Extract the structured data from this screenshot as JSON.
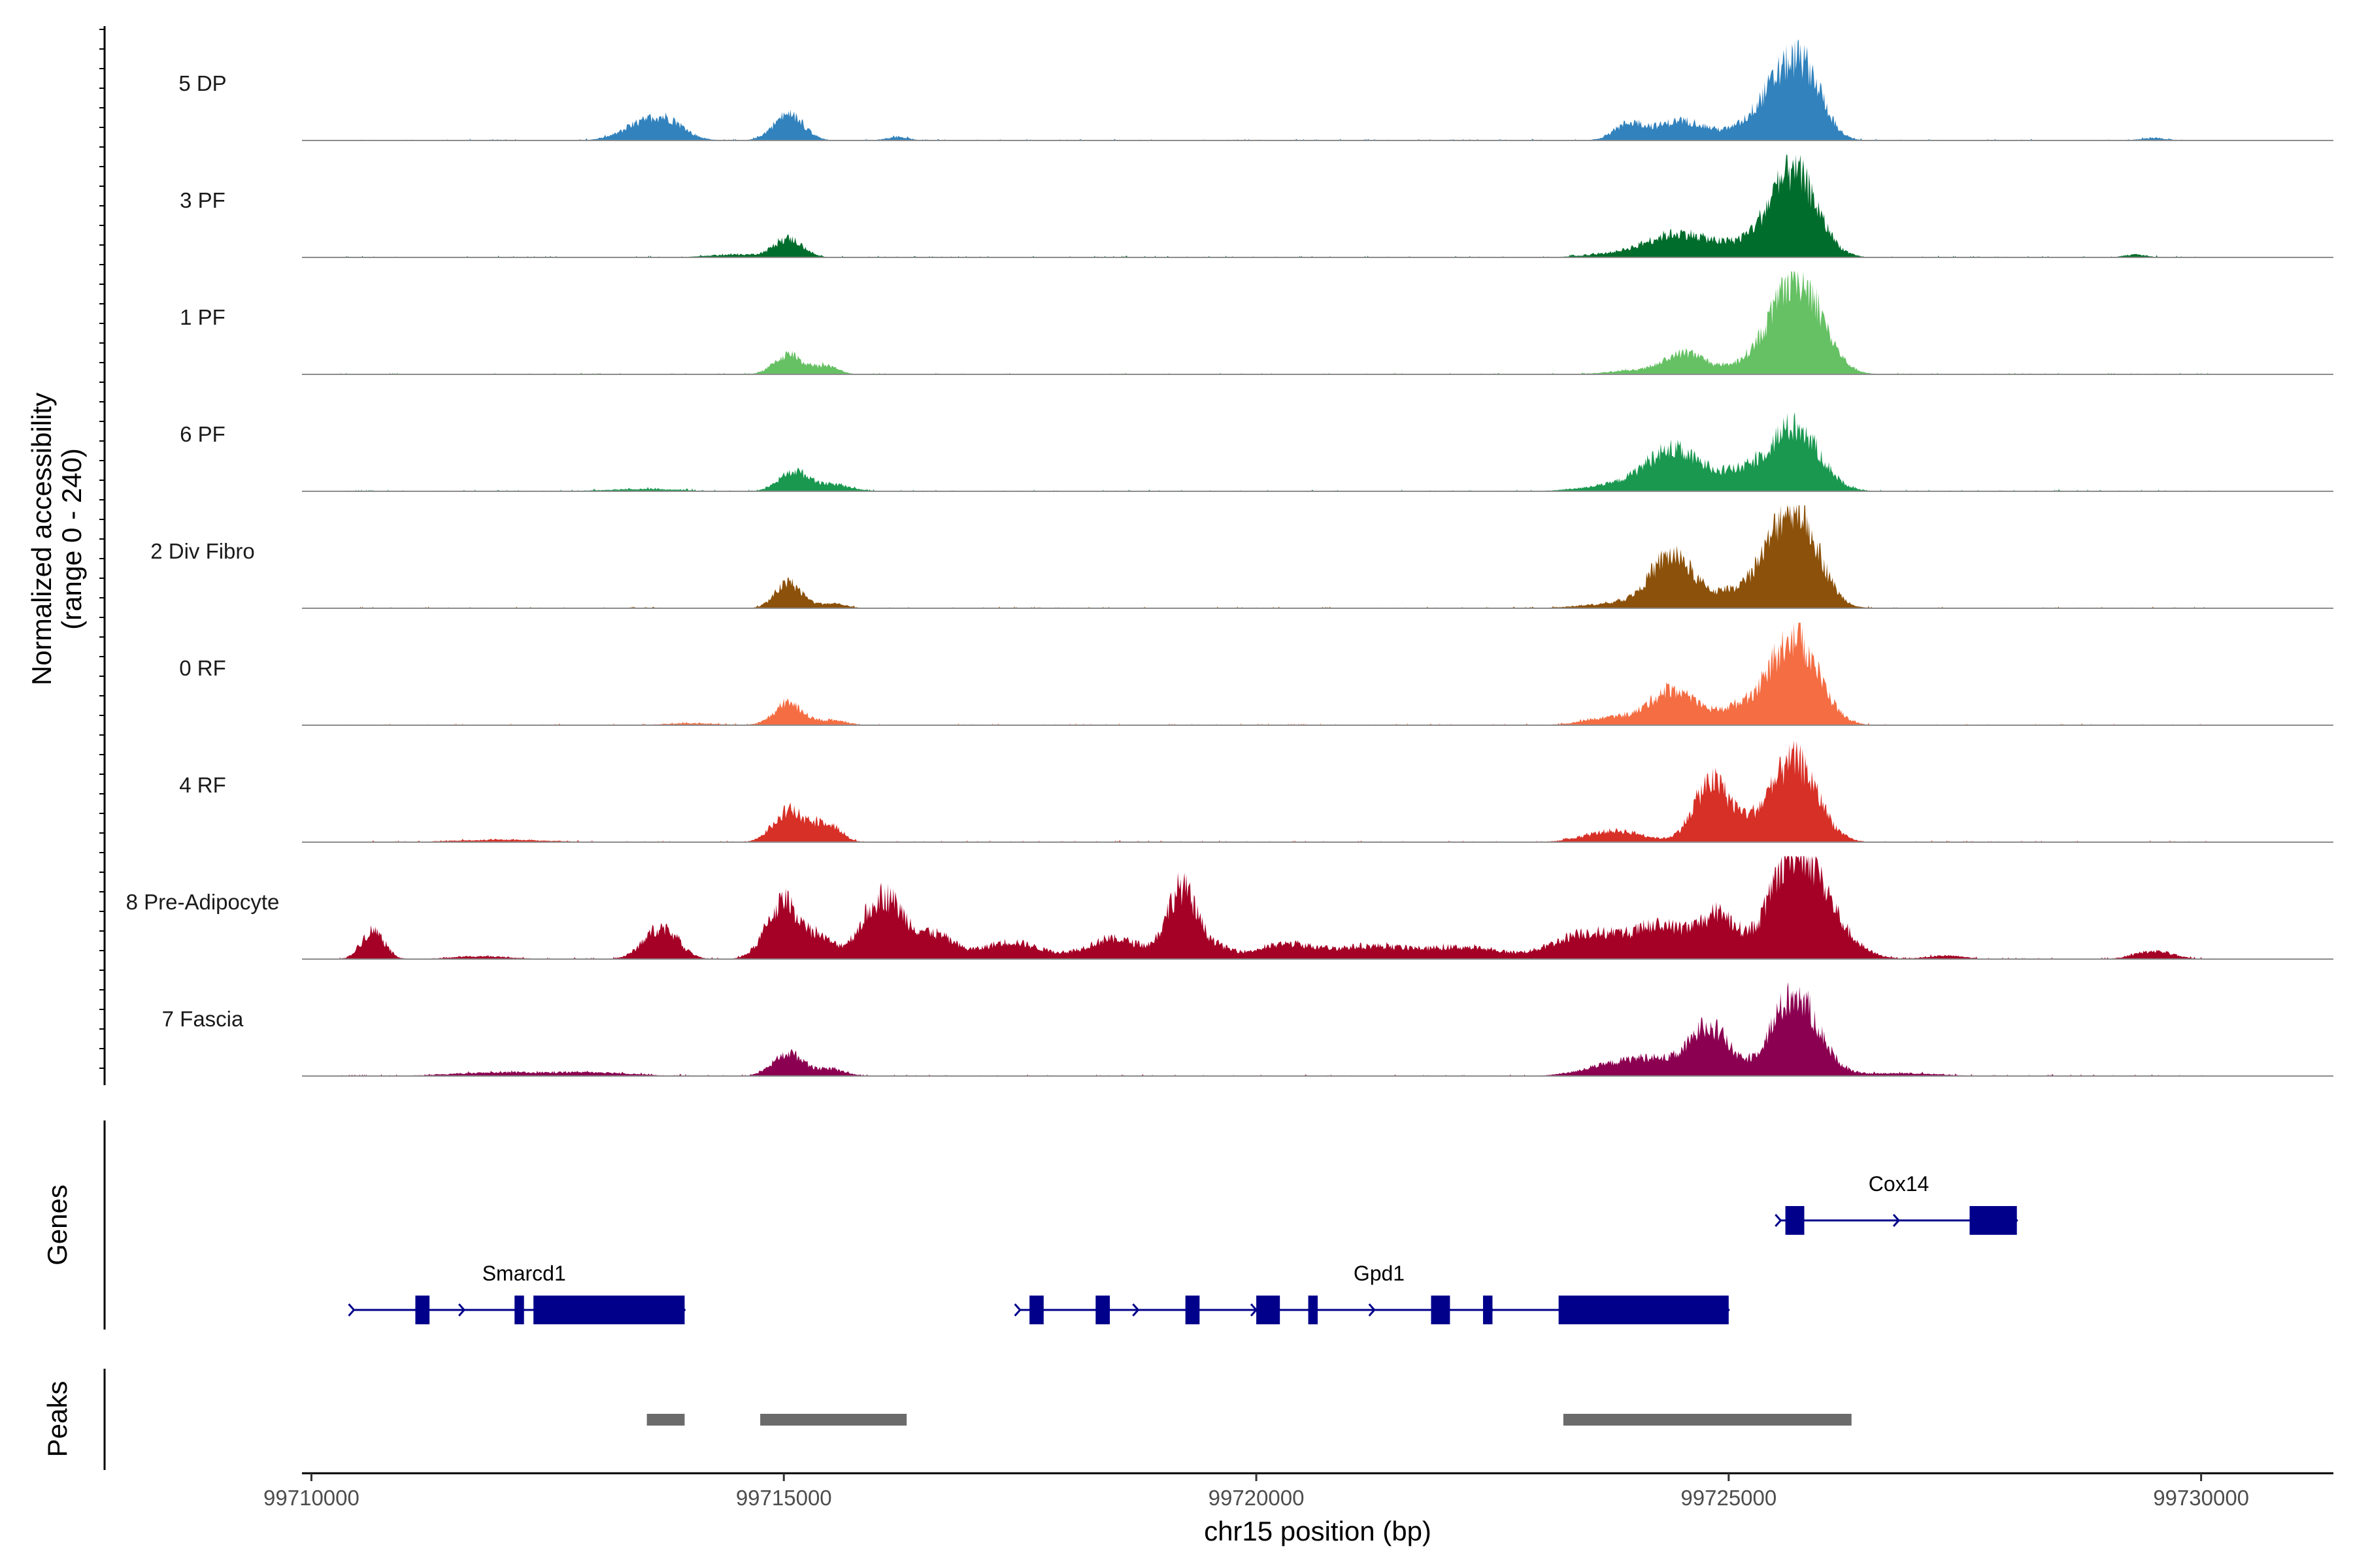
{
  "chart_data": {
    "type": "area",
    "y_axis_title": [
      "Normalized accessibility",
      "(range 0 - 240)"
    ],
    "x_axis_title": "chr15 position (bp)",
    "x_range": [
      99709900,
      99731400
    ],
    "x_ticks": [
      99710000,
      99715000,
      99720000,
      99725000,
      99730000
    ],
    "x_tick_labels": [
      "99710000",
      "99715000",
      "99720000",
      "99725000",
      "99730000"
    ],
    "y_range": [
      0,
      240
    ],
    "tracks": [
      {
        "name": "5 DP",
        "color": "#3182bd",
        "peaks": [
          [
            99713600,
            35,
            260
          ],
          [
            99713800,
            12,
            150
          ],
          [
            99715050,
            45,
            160
          ],
          [
            99716200,
            6,
            120
          ],
          [
            99723950,
            28,
            160
          ],
          [
            99724500,
            34,
            260
          ],
          [
            99725600,
            94,
            240
          ],
          [
            99725850,
            70,
            180
          ],
          [
            99725300,
            20,
            300
          ],
          [
            99729500,
            4,
            150
          ]
        ]
      },
      {
        "name": "3 PF",
        "color": "#006d2c",
        "peaks": [
          [
            99715050,
            32,
            150
          ],
          [
            99714500,
            5,
            300
          ],
          [
            99724500,
            38,
            320
          ],
          [
            99725700,
            140,
            240
          ],
          [
            99725300,
            25,
            300
          ],
          [
            99724000,
            8,
            400
          ],
          [
            99729300,
            5,
            120
          ]
        ]
      },
      {
        "name": "1 PF",
        "color": "#66c164",
        "peaks": [
          [
            99715050,
            34,
            150
          ],
          [
            99715450,
            14,
            130
          ],
          [
            99724550,
            36,
            220
          ],
          [
            99725750,
            160,
            250
          ],
          [
            99725350,
            28,
            250
          ],
          [
            99724000,
            6,
            300
          ]
        ]
      },
      {
        "name": "6 PF",
        "color": "#1a9850",
        "peaks": [
          [
            99715100,
            34,
            150
          ],
          [
            99715500,
            12,
            200
          ],
          [
            99724400,
            70,
            280
          ],
          [
            99725700,
            110,
            260
          ],
          [
            99725100,
            30,
            280
          ],
          [
            99723800,
            10,
            350
          ],
          [
            99713500,
            4,
            400
          ]
        ]
      },
      {
        "name": "2 Div Fibro",
        "color": "#8c510a",
        "peaks": [
          [
            99715050,
            44,
            140
          ],
          [
            99715500,
            8,
            150
          ],
          [
            99724400,
            90,
            230
          ],
          [
            99725700,
            175,
            240
          ],
          [
            99725200,
            35,
            300
          ],
          [
            99723800,
            8,
            350
          ]
        ]
      },
      {
        "name": "0 RF",
        "color": "#f46d43",
        "peaks": [
          [
            99715050,
            38,
            150
          ],
          [
            99715500,
            8,
            160
          ],
          [
            99724400,
            60,
            220
          ],
          [
            99725700,
            150,
            250
          ],
          [
            99725100,
            30,
            280
          ],
          [
            99723800,
            14,
            300
          ],
          [
            99714000,
            3,
            300
          ]
        ]
      },
      {
        "name": "4 RF",
        "color": "#d73027",
        "peaks": [
          [
            99715050,
            55,
            160
          ],
          [
            99715450,
            34,
            140
          ],
          [
            99724800,
            90,
            180
          ],
          [
            99725700,
            140,
            240
          ],
          [
            99725100,
            30,
            260
          ],
          [
            99723800,
            20,
            300
          ],
          [
            99712000,
            4,
            500
          ]
        ]
      },
      {
        "name": "8 Pre-Adipocyte",
        "color": "#a50026",
        "peaks": [
          [
            99710650,
            50,
            120
          ],
          [
            99713700,
            55,
            180
          ],
          [
            99715000,
            100,
            180
          ],
          [
            99715400,
            30,
            140
          ],
          [
            99716050,
            110,
            220
          ],
          [
            99716600,
            40,
            200
          ],
          [
            99717400,
            30,
            300
          ],
          [
            99718500,
            35,
            300
          ],
          [
            99719200,
            115,
            150
          ],
          [
            99719500,
            25,
            200
          ],
          [
            99720300,
            25,
            300
          ],
          [
            99721200,
            22,
            400
          ],
          [
            99722200,
            20,
            400
          ],
          [
            99723500,
            45,
            350
          ],
          [
            99724300,
            55,
            300
          ],
          [
            99724900,
            70,
            200
          ],
          [
            99725700,
            165,
            260
          ],
          [
            99726000,
            50,
            300
          ],
          [
            99729500,
            14,
            200
          ],
          [
            99727300,
            6,
            200
          ],
          [
            99711800,
            5,
            300
          ]
        ]
      },
      {
        "name": "7 Fascia",
        "color": "#8c0051",
        "peaks": [
          [
            99715050,
            40,
            160
          ],
          [
            99715500,
            12,
            150
          ],
          [
            99724800,
            85,
            200
          ],
          [
            99725700,
            140,
            250
          ],
          [
            99724200,
            28,
            300
          ],
          [
            99723700,
            14,
            300
          ],
          [
            99712000,
            6,
            500
          ],
          [
            99713000,
            6,
            400
          ],
          [
            99726800,
            5,
            400
          ]
        ]
      }
    ],
    "genes": [
      {
        "name": "Smarcd1",
        "start": 99710450,
        "end": 99713950,
        "row": 1,
        "strand": "+",
        "exons": [
          [
            99711100,
            99711250
          ],
          [
            99712150,
            99712250
          ],
          [
            99712350,
            99713950
          ]
        ],
        "label_pos": 99712250
      },
      {
        "name": "Gpd1",
        "start": 99717500,
        "end": 99725000,
        "row": 1,
        "strand": "+",
        "exons": [
          [
            99717600,
            99717750
          ],
          [
            99718300,
            99718450
          ],
          [
            99719250,
            99719400
          ],
          [
            99720000,
            99720250
          ],
          [
            99720550,
            99720650
          ],
          [
            99721850,
            99722050
          ],
          [
            99722400,
            99722500
          ],
          [
            99723200,
            99725000
          ]
        ],
        "label_pos": 99721300
      },
      {
        "name": "Cox14",
        "start": 99725550,
        "end": 99728050,
        "row": 0,
        "strand": "+",
        "exons": [
          [
            99725600,
            99725800
          ],
          [
            99727550,
            99728050
          ]
        ],
        "label_pos": 99726800
      }
    ],
    "peaks_track": [
      [
        99713550,
        99713950
      ],
      [
        99714750,
        99716300
      ],
      [
        99723250,
        99726300
      ]
    ],
    "section_labels": {
      "genes": "Genes",
      "peaks": "Peaks"
    },
    "colors": {
      "gene": "#00008b",
      "peak": "#6b6b6b",
      "baseline": "#8c8c8c"
    }
  }
}
